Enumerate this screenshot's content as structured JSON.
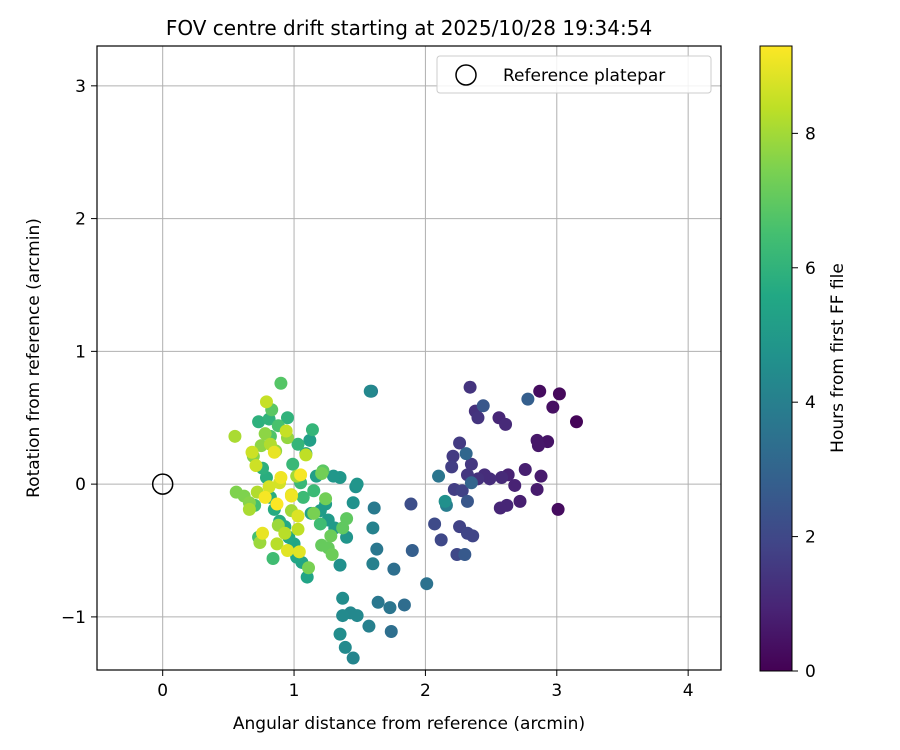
{
  "chart_data": {
    "type": "scatter",
    "title": "FOV centre drift starting at 2025/10/28 19:34:54",
    "xlabel": "Angular distance from reference (arcmin)",
    "ylabel": "Rotation from reference (arcmin)",
    "xlim": [
      -0.5,
      4.25
    ],
    "ylim": [
      -1.4,
      3.3
    ],
    "xticks": [
      0,
      1,
      2,
      3,
      4
    ],
    "yticks": [
      -1,
      0,
      1,
      2,
      3
    ],
    "xtick_labels": [
      "0",
      "1",
      "2",
      "3",
      "4"
    ],
    "ytick_labels": [
      "−1",
      "0",
      "1",
      "2",
      "3"
    ],
    "grid": true,
    "legend": {
      "position": "top-right",
      "entries": [
        "Reference platepar"
      ]
    },
    "reference": {
      "x": 0,
      "y": 0,
      "label": "Reference platepar"
    },
    "colorbar": {
      "label": "Hours from first FF file",
      "colormap": "viridis",
      "range": [
        0,
        9.3
      ],
      "ticks": [
        0,
        2,
        4,
        6,
        8
      ],
      "tick_labels": [
        "0",
        "2",
        "4",
        "6",
        "8"
      ]
    },
    "points": [
      {
        "x": 3.15,
        "y": 0.47,
        "h": 0.1
      },
      {
        "x": 3.02,
        "y": 0.68,
        "h": 0.2
      },
      {
        "x": 3.01,
        "y": -0.19,
        "h": 0.3
      },
      {
        "x": 2.87,
        "y": 0.7,
        "h": 0.3
      },
      {
        "x": 2.97,
        "y": 0.58,
        "h": 0.4
      },
      {
        "x": 2.93,
        "y": 0.32,
        "h": 0.5
      },
      {
        "x": 2.85,
        "y": 0.33,
        "h": 0.6
      },
      {
        "x": 2.86,
        "y": 0.29,
        "h": 0.6
      },
      {
        "x": 2.88,
        "y": 0.06,
        "h": 0.7
      },
      {
        "x": 2.85,
        "y": -0.04,
        "h": 0.7
      },
      {
        "x": 2.76,
        "y": 0.11,
        "h": 0.8
      },
      {
        "x": 2.72,
        "y": -0.13,
        "h": 0.8
      },
      {
        "x": 2.68,
        "y": -0.01,
        "h": 0.9
      },
      {
        "x": 2.63,
        "y": 0.07,
        "h": 0.9
      },
      {
        "x": 2.62,
        "y": -0.16,
        "h": 1.0
      },
      {
        "x": 2.57,
        "y": -0.18,
        "h": 1.0
      },
      {
        "x": 2.56,
        "y": 0.5,
        "h": 1.0
      },
      {
        "x": 2.61,
        "y": 0.45,
        "h": 1.1
      },
      {
        "x": 2.58,
        "y": 0.05,
        "h": 1.1
      },
      {
        "x": 2.49,
        "y": 0.04,
        "h": 1.2
      },
      {
        "x": 2.45,
        "y": 0.07,
        "h": 1.2
      },
      {
        "x": 2.4,
        "y": 0.04,
        "h": 1.3
      },
      {
        "x": 2.38,
        "y": 0.55,
        "h": 1.3
      },
      {
        "x": 2.4,
        "y": 0.5,
        "h": 1.4
      },
      {
        "x": 2.34,
        "y": 0.73,
        "h": 1.4
      },
      {
        "x": 2.35,
        "y": 0.15,
        "h": 1.5
      },
      {
        "x": 2.32,
        "y": 0.07,
        "h": 1.5
      },
      {
        "x": 2.26,
        "y": 0.31,
        "h": 1.6
      },
      {
        "x": 2.21,
        "y": 0.21,
        "h": 1.6
      },
      {
        "x": 2.2,
        "y": 0.13,
        "h": 1.7
      },
      {
        "x": 2.22,
        "y": -0.04,
        "h": 1.7
      },
      {
        "x": 2.28,
        "y": -0.05,
        "h": 1.8
      },
      {
        "x": 2.26,
        "y": -0.32,
        "h": 1.8
      },
      {
        "x": 2.36,
        "y": -0.39,
        "h": 1.9
      },
      {
        "x": 2.32,
        "y": -0.37,
        "h": 1.9
      },
      {
        "x": 2.24,
        "y": -0.53,
        "h": 2.0
      },
      {
        "x": 2.12,
        "y": -0.42,
        "h": 2.0
      },
      {
        "x": 2.07,
        "y": -0.3,
        "h": 2.1
      },
      {
        "x": 1.89,
        "y": -0.15,
        "h": 2.2
      },
      {
        "x": 2.44,
        "y": 0.59,
        "h": 2.5
      },
      {
        "x": 2.32,
        "y": -0.13,
        "h": 2.5
      },
      {
        "x": 2.3,
        "y": -0.53,
        "h": 2.6
      },
      {
        "x": 2.78,
        "y": 0.64,
        "h": 2.8
      },
      {
        "x": 1.9,
        "y": -0.5,
        "h": 2.8
      },
      {
        "x": 2.35,
        "y": 0.01,
        "h": 3.0
      },
      {
        "x": 2.31,
        "y": 0.23,
        "h": 3.1
      },
      {
        "x": 1.84,
        "y": -0.91,
        "h": 3.3
      },
      {
        "x": 1.76,
        "y": -0.64,
        "h": 3.4
      },
      {
        "x": 1.74,
        "y": -1.11,
        "h": 3.4
      },
      {
        "x": 2.01,
        "y": -0.75,
        "h": 3.5
      },
      {
        "x": 2.1,
        "y": 0.06,
        "h": 3.6
      },
      {
        "x": 1.73,
        "y": -0.93,
        "h": 3.6
      },
      {
        "x": 1.63,
        "y": -0.49,
        "h": 3.7
      },
      {
        "x": 1.64,
        "y": -0.89,
        "h": 3.7
      },
      {
        "x": 1.61,
        "y": -0.18,
        "h": 3.8
      },
      {
        "x": 1.59,
        "y": 0.7,
        "h": 3.9
      },
      {
        "x": 2.16,
        "y": -0.16,
        "h": 3.9
      },
      {
        "x": 1.6,
        "y": -0.6,
        "h": 4.0
      },
      {
        "x": 1.57,
        "y": -1.07,
        "h": 4.0
      },
      {
        "x": 1.6,
        "y": -0.33,
        "h": 4.1
      },
      {
        "x": 1.58,
        "y": 0.7,
        "h": 4.3
      },
      {
        "x": 1.45,
        "y": -1.31,
        "h": 4.2
      },
      {
        "x": 1.48,
        "y": -0.99,
        "h": 4.3
      },
      {
        "x": 1.43,
        "y": -0.97,
        "h": 4.3
      },
      {
        "x": 1.37,
        "y": -0.99,
        "h": 4.4
      },
      {
        "x": 1.39,
        "y": -1.23,
        "h": 4.4
      },
      {
        "x": 1.35,
        "y": -1.13,
        "h": 4.5
      },
      {
        "x": 1.37,
        "y": -0.86,
        "h": 4.5
      },
      {
        "x": 2.15,
        "y": -0.13,
        "h": 4.6
      },
      {
        "x": 1.35,
        "y": -0.61,
        "h": 4.6
      },
      {
        "x": 1.45,
        "y": -0.14,
        "h": 4.7
      },
      {
        "x": 1.47,
        "y": -0.02,
        "h": 4.7
      },
      {
        "x": 1.48,
        "y": 0.0,
        "h": 4.8
      },
      {
        "x": 1.4,
        "y": -0.4,
        "h": 4.8
      },
      {
        "x": 1.35,
        "y": 0.05,
        "h": 4.9
      },
      {
        "x": 1.3,
        "y": 0.06,
        "h": 4.9
      },
      {
        "x": 1.26,
        "y": -0.27,
        "h": 5.0
      },
      {
        "x": 1.31,
        "y": -0.33,
        "h": 5.0
      },
      {
        "x": 1.24,
        "y": -0.15,
        "h": 5.1
      },
      {
        "x": 1.2,
        "y": -0.2,
        "h": 5.1
      },
      {
        "x": 1.17,
        "y": 0.06,
        "h": 5.2
      },
      {
        "x": 1.12,
        "y": 0.33,
        "h": 5.2
      },
      {
        "x": 1.09,
        "y": 0.23,
        "h": 5.3
      },
      {
        "x": 1.13,
        "y": -0.22,
        "h": 5.3
      },
      {
        "x": 1.1,
        "y": -0.7,
        "h": 5.4
      },
      {
        "x": 1.06,
        "y": -0.59,
        "h": 5.4
      },
      {
        "x": 1.02,
        "y": -0.55,
        "h": 5.5
      },
      {
        "x": 1.0,
        "y": -0.45,
        "h": 5.5
      },
      {
        "x": 0.96,
        "y": -0.4,
        "h": 5.6
      },
      {
        "x": 0.93,
        "y": -0.32,
        "h": 5.6
      },
      {
        "x": 0.89,
        "y": -0.28,
        "h": 5.7
      },
      {
        "x": 0.85,
        "y": -0.19,
        "h": 5.7
      },
      {
        "x": 0.82,
        "y": -0.1,
        "h": 5.8
      },
      {
        "x": 0.79,
        "y": 0.05,
        "h": 5.8
      },
      {
        "x": 0.76,
        "y": 0.12,
        "h": 5.9
      },
      {
        "x": 0.73,
        "y": 0.47,
        "h": 5.9
      },
      {
        "x": 0.81,
        "y": 0.49,
        "h": 6.0
      },
      {
        "x": 0.95,
        "y": 0.5,
        "h": 6.0
      },
      {
        "x": 1.14,
        "y": 0.41,
        "h": 6.1
      },
      {
        "x": 1.03,
        "y": 0.3,
        "h": 6.1
      },
      {
        "x": 0.99,
        "y": 0.15,
        "h": 6.2
      },
      {
        "x": 1.05,
        "y": 0.01,
        "h": 6.2
      },
      {
        "x": 1.07,
        "y": -0.1,
        "h": 6.3
      },
      {
        "x": 1.15,
        "y": -0.05,
        "h": 6.3
      },
      {
        "x": 1.2,
        "y": -0.3,
        "h": 6.4
      },
      {
        "x": 0.84,
        "y": -0.56,
        "h": 6.4
      },
      {
        "x": 0.73,
        "y": -0.4,
        "h": 6.5
      },
      {
        "x": 0.7,
        "y": -0.16,
        "h": 6.5
      },
      {
        "x": 0.88,
        "y": 0.44,
        "h": 6.6
      },
      {
        "x": 0.82,
        "y": 0.36,
        "h": 6.7
      },
      {
        "x": 0.9,
        "y": 0.76,
        "h": 6.8
      },
      {
        "x": 0.83,
        "y": 0.56,
        "h": 6.9
      },
      {
        "x": 1.22,
        "y": 0.1,
        "h": 6.9
      },
      {
        "x": 1.37,
        "y": -0.33,
        "h": 7.0
      },
      {
        "x": 1.4,
        "y": -0.26,
        "h": 7.0
      },
      {
        "x": 1.26,
        "y": -0.48,
        "h": 7.1
      },
      {
        "x": 1.21,
        "y": -0.46,
        "h": 7.1
      },
      {
        "x": 1.28,
        "y": -0.39,
        "h": 7.2
      },
      {
        "x": 1.29,
        "y": -0.53,
        "h": 7.2
      },
      {
        "x": 1.24,
        "y": -0.11,
        "h": 7.3
      },
      {
        "x": 1.21,
        "y": 0.08,
        "h": 7.3
      },
      {
        "x": 1.15,
        "y": -0.22,
        "h": 7.4
      },
      {
        "x": 1.11,
        "y": -0.63,
        "h": 7.4
      },
      {
        "x": 0.56,
        "y": -0.06,
        "h": 7.5
      },
      {
        "x": 0.62,
        "y": -0.09,
        "h": 7.5
      },
      {
        "x": 0.66,
        "y": -0.14,
        "h": 7.6
      },
      {
        "x": 0.69,
        "y": 0.21,
        "h": 7.6
      },
      {
        "x": 0.75,
        "y": 0.29,
        "h": 7.7
      },
      {
        "x": 0.78,
        "y": 0.38,
        "h": 7.7
      },
      {
        "x": 0.86,
        "y": 0.25,
        "h": 7.8
      },
      {
        "x": 0.95,
        "y": 0.35,
        "h": 7.8
      },
      {
        "x": 0.74,
        "y": -0.44,
        "h": 7.9
      },
      {
        "x": 0.88,
        "y": -0.31,
        "h": 7.9
      },
      {
        "x": 0.98,
        "y": -0.2,
        "h": 8.0
      },
      {
        "x": 1.02,
        "y": 0.06,
        "h": 8.0
      },
      {
        "x": 0.55,
        "y": 0.36,
        "h": 8.1
      },
      {
        "x": 0.66,
        "y": -0.19,
        "h": 8.1
      },
      {
        "x": 0.72,
        "y": -0.06,
        "h": 8.2
      },
      {
        "x": 0.82,
        "y": 0.3,
        "h": 8.2
      },
      {
        "x": 0.93,
        "y": -0.37,
        "h": 8.3
      },
      {
        "x": 0.87,
        "y": -0.45,
        "h": 8.3
      },
      {
        "x": 1.03,
        "y": -0.34,
        "h": 8.4
      },
      {
        "x": 1.09,
        "y": 0.22,
        "h": 8.4
      },
      {
        "x": 0.79,
        "y": 0.62,
        "h": 8.5
      },
      {
        "x": 0.94,
        "y": 0.4,
        "h": 8.5
      },
      {
        "x": 0.68,
        "y": 0.24,
        "h": 8.6
      },
      {
        "x": 0.71,
        "y": 0.14,
        "h": 8.6
      },
      {
        "x": 0.81,
        "y": -0.02,
        "h": 8.7
      },
      {
        "x": 0.89,
        "y": 0.01,
        "h": 8.7
      },
      {
        "x": 0.98,
        "y": -0.08,
        "h": 8.8
      },
      {
        "x": 1.03,
        "y": -0.24,
        "h": 8.8
      },
      {
        "x": 0.95,
        "y": -0.5,
        "h": 8.9
      },
      {
        "x": 1.04,
        "y": -0.51,
        "h": 8.9
      },
      {
        "x": 0.76,
        "y": -0.37,
        "h": 9.0
      },
      {
        "x": 0.85,
        "y": 0.24,
        "h": 9.0
      },
      {
        "x": 0.9,
        "y": 0.05,
        "h": 9.1
      },
      {
        "x": 0.98,
        "y": -0.09,
        "h": 9.1
      },
      {
        "x": 1.05,
        "y": 0.07,
        "h": 9.2
      },
      {
        "x": 0.78,
        "y": -0.1,
        "h": 9.2
      },
      {
        "x": 0.87,
        "y": -0.15,
        "h": 9.3
      }
    ]
  }
}
